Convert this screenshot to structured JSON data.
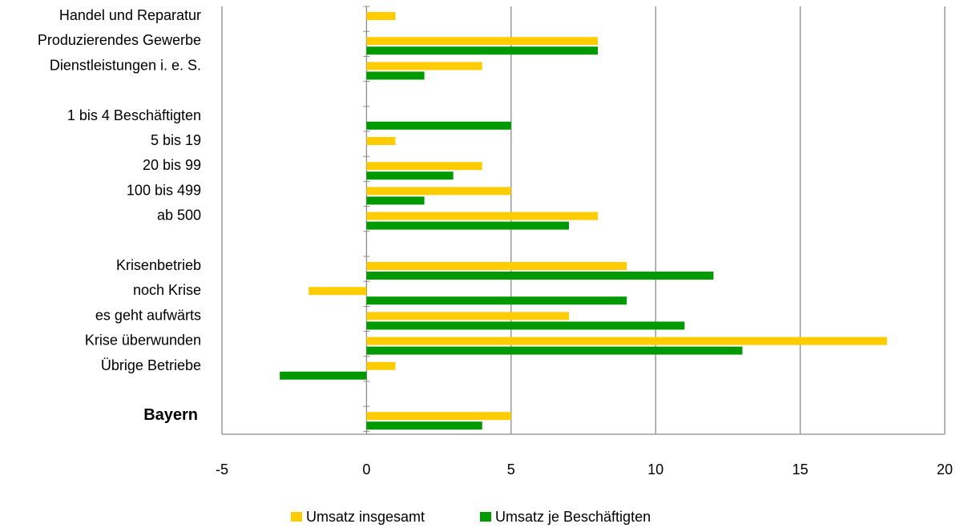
{
  "chart_data": {
    "type": "bar",
    "orientation": "horizontal",
    "categories": [
      "Handel und Reparatur",
      "Produzierendes Gewerbe",
      "Dienstleistungen i. e. S.",
      "",
      "1 bis  4 Beschäftigten",
      "5 bis 19",
      "20 bis 99",
      "100 bis 499",
      "ab 500",
      "",
      "Krisenbetrieb",
      "noch Krise",
      "es geht aufwärts",
      "Krise überwunden",
      "Übrige Betriebe",
      "",
      "Bayern"
    ],
    "bold_categories": [
      "Bayern"
    ],
    "series": [
      {
        "name": "Umsatz insgesamt",
        "color": "#FFCC00",
        "values": [
          1,
          8,
          4,
          null,
          0,
          1,
          4,
          5,
          8,
          null,
          9,
          -2,
          7,
          18,
          1,
          null,
          5
        ]
      },
      {
        "name": "Umsatz je Beschäftigten",
        "color": "#009900",
        "values": [
          0,
          8,
          2,
          null,
          5,
          0,
          3,
          2,
          7,
          null,
          12,
          9,
          11,
          13,
          -3,
          null,
          4
        ]
      }
    ],
    "xlim": [
      -5,
      20
    ],
    "xticks": [
      "-5",
      "0",
      "5",
      "10",
      "15",
      "20"
    ],
    "xtick_values": [
      -5,
      0,
      5,
      10,
      15,
      20
    ],
    "grid": "vertical",
    "legend_position": "bottom"
  }
}
